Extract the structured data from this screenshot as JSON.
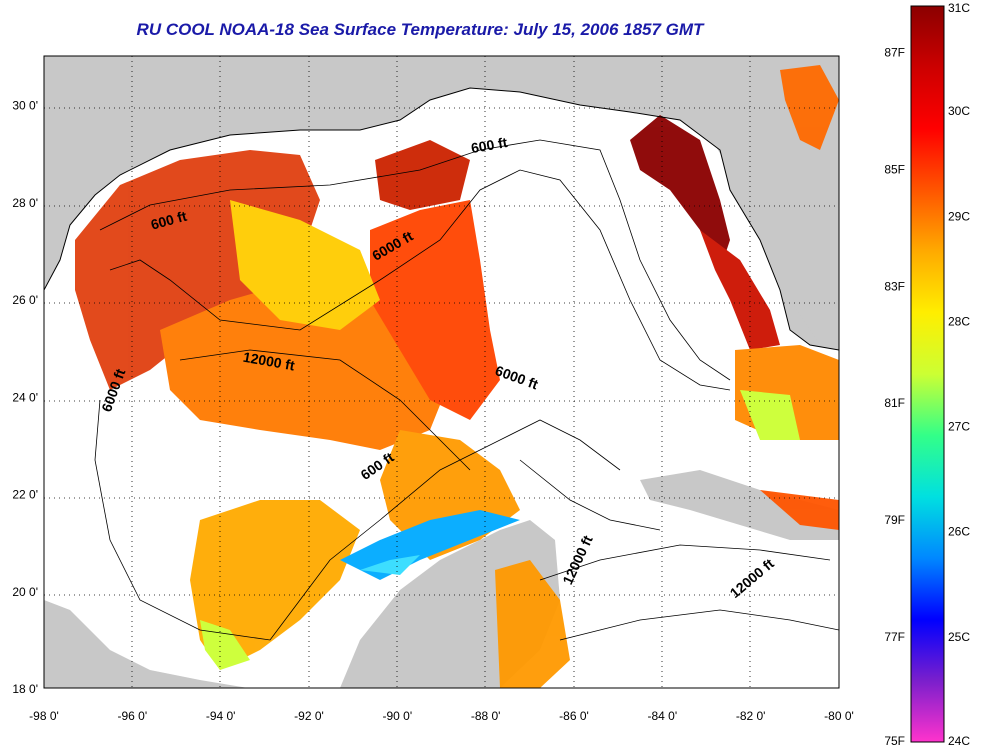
{
  "title": "RU COOL  NOAA-18  Sea Surface Temperature:  July 15, 2006 1857 GMT",
  "map": {
    "lon_range": [
      -98,
      -80
    ],
    "lat_range": [
      18,
      31
    ],
    "x_ticks": [
      "-98 0'",
      "-96 0'",
      "-94 0'",
      "-92 0'",
      "-90 0'",
      "-88 0'",
      "-86 0'",
      "-84 0'",
      "-82 0'",
      "-80 0'"
    ],
    "y_ticks": [
      "18 0'",
      "20 0'",
      "22 0'",
      "24 0'",
      "26 0'",
      "28 0'",
      "30 0'"
    ],
    "grid": "dotted",
    "contour_labels": [
      {
        "text": "600 ft",
        "rotation": -15
      },
      {
        "text": "600 ft",
        "rotation": -10
      },
      {
        "text": "6000 ft",
        "rotation": -30
      },
      {
        "text": "12000 ft",
        "rotation": 10
      },
      {
        "text": "6000 ft",
        "rotation": 20
      },
      {
        "text": "6000 ft",
        "rotation": -70
      },
      {
        "text": "600 ft",
        "rotation": -35
      },
      {
        "text": "12000 ft",
        "rotation": -65
      },
      {
        "text": "12000 ft",
        "rotation": -40
      }
    ]
  },
  "colorbar": {
    "fahrenheit_labels": [
      "87F",
      "85F",
      "83F",
      "81F",
      "79F",
      "77F",
      "75F"
    ],
    "celsius_labels": [
      "31C",
      "30C",
      "29C",
      "28C",
      "27C",
      "26C",
      "25C",
      "24C"
    ],
    "colors": [
      "#ff33cc",
      "#7a1fcc",
      "#0000ff",
      "#0088ff",
      "#00e0e0",
      "#33ff88",
      "#ccff33",
      "#ffee00",
      "#ffaa00",
      "#ff5500",
      "#ff0000",
      "#cc0000",
      "#8b0000"
    ]
  },
  "colors": {
    "land": "#c8c8c8",
    "no_data": "#ffffff",
    "title": "#1a1aa8"
  }
}
